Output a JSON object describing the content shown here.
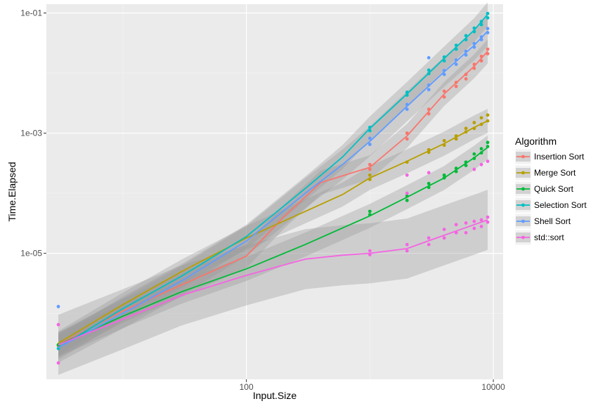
{
  "chart_data": {
    "type": "scatter",
    "title": "",
    "xlabel": "Input.Size",
    "ylabel": "Time.Elapsed",
    "x_scale": "log10",
    "y_scale": "log10",
    "xlim": [
      2.4,
      12000
    ],
    "ylim": [
      8e-08,
      0.14
    ],
    "x_ticks": [
      {
        "value": 100,
        "label": "100"
      },
      {
        "value": 10000,
        "label": "10000"
      }
    ],
    "x_minor_ticks": [
      10,
      1000
    ],
    "y_ticks": [
      {
        "value": 1e-05,
        "label": "1e-05"
      },
      {
        "value": 0.001,
        "label": "1e-03"
      },
      {
        "value": 0.1,
        "label": "1e-01"
      }
    ],
    "y_minor_ticks": [
      1e-06,
      0.0001,
      0.01
    ],
    "grid": true,
    "legend": {
      "title": "Algorithm",
      "position": "right"
    },
    "series": [
      {
        "name": "Insertion Sort",
        "color": "#F8766D",
        "points": [
          [
            3,
            2.9e-07
          ],
          [
            1000,
            0.00025
          ],
          [
            1000,
            0.0003
          ],
          [
            2000,
            0.0008
          ],
          [
            2000,
            0.001
          ],
          [
            3000,
            0.0021
          ],
          [
            3000,
            0.0025
          ],
          [
            4000,
            0.004
          ],
          [
            4000,
            0.005
          ],
          [
            5000,
            0.006
          ],
          [
            5000,
            0.007
          ],
          [
            6000,
            0.008
          ],
          [
            6000,
            0.0095
          ],
          [
            7000,
            0.012
          ],
          [
            7000,
            0.014
          ],
          [
            8000,
            0.016
          ],
          [
            8000,
            0.019
          ],
          [
            9000,
            0.021
          ],
          [
            9000,
            0.025
          ]
        ],
        "fit": [
          [
            3,
            3e-07
          ],
          [
            10,
            1.1e-06
          ],
          [
            30,
            3e-06
          ],
          [
            100,
            9e-06
          ],
          [
            200,
            4e-05
          ],
          [
            400,
            0.00015
          ],
          [
            1000,
            0.00027
          ],
          [
            2000,
            0.0009
          ],
          [
            4000,
            0.0045
          ],
          [
            7000,
            0.013
          ],
          [
            9000,
            0.023
          ]
        ],
        "band": 0.2
      },
      {
        "name": "Merge Sort",
        "color": "#B79F00",
        "points": [
          [
            3,
            3e-07
          ],
          [
            1000,
            0.00017
          ],
          [
            1000,
            0.0002
          ],
          [
            2000,
            0.00033
          ],
          [
            3000,
            0.00048
          ],
          [
            3000,
            0.00053
          ],
          [
            4000,
            0.00063
          ],
          [
            4000,
            0.00075
          ],
          [
            5000,
            0.0008
          ],
          [
            5000,
            0.0009
          ],
          [
            6000,
            0.00105
          ],
          [
            6000,
            0.0012
          ],
          [
            7000,
            0.0012
          ],
          [
            7000,
            0.0015
          ],
          [
            8000,
            0.0014
          ],
          [
            8000,
            0.0018
          ],
          [
            9000,
            0.0016
          ],
          [
            9000,
            0.002
          ]
        ],
        "fit": [
          [
            3,
            3.2e-07
          ],
          [
            10,
            1.4e-06
          ],
          [
            30,
            5e-06
          ],
          [
            100,
            1.8e-05
          ],
          [
            300,
            5e-05
          ],
          [
            600,
            9.5e-05
          ],
          [
            1000,
            0.00018
          ],
          [
            2000,
            0.00034
          ],
          [
            4000,
            0.00067
          ],
          [
            7000,
            0.00125
          ],
          [
            9000,
            0.0016
          ]
        ],
        "band": 0.2
      },
      {
        "name": "Quick Sort",
        "color": "#00BA38",
        "points": [
          [
            3,
            3e-07
          ],
          [
            1000,
            4.4e-05
          ],
          [
            1000,
            5e-05
          ],
          [
            2000,
            7.6e-05
          ],
          [
            2000,
            9e-05
          ],
          [
            3000,
            0.000125
          ],
          [
            3000,
            0.000145
          ],
          [
            4000,
            0.00018
          ],
          [
            4000,
            0.0002
          ],
          [
            5000,
            0.00023
          ],
          [
            5000,
            0.00026
          ],
          [
            6000,
            0.00029
          ],
          [
            6000,
            0.00033
          ],
          [
            7000,
            0.00038
          ],
          [
            7000,
            0.00045
          ],
          [
            8000,
            0.00047
          ],
          [
            8000,
            0.00055
          ],
          [
            9000,
            0.0006
          ],
          [
            9000,
            0.0007
          ]
        ],
        "fit": [
          [
            3,
            3e-07
          ],
          [
            10,
            9e-07
          ],
          [
            30,
            2.3e-06
          ],
          [
            100,
            5.5e-06
          ],
          [
            300,
            1.4e-05
          ],
          [
            1000,
            4.2e-05
          ],
          [
            2000,
            8.6e-05
          ],
          [
            4000,
            0.00018
          ],
          [
            7000,
            0.00039
          ],
          [
            9000,
            0.00058
          ]
        ],
        "band": 0.2
      },
      {
        "name": "Selection Sort",
        "color": "#00BFC4",
        "points": [
          [
            3,
            2.6e-07
          ],
          [
            1000,
            0.0011
          ],
          [
            1000,
            0.00125
          ],
          [
            2000,
            0.0043
          ],
          [
            2000,
            0.0048
          ],
          [
            3000,
            0.0098
          ],
          [
            3000,
            0.0112
          ],
          [
            4000,
            0.016
          ],
          [
            4000,
            0.0185
          ],
          [
            5000,
            0.025
          ],
          [
            5000,
            0.029
          ],
          [
            6000,
            0.036
          ],
          [
            6000,
            0.042
          ],
          [
            7000,
            0.049
          ],
          [
            7000,
            0.056
          ],
          [
            8000,
            0.064
          ],
          [
            8000,
            0.072
          ],
          [
            9000,
            0.083
          ],
          [
            9000,
            0.098
          ]
        ],
        "fit": [
          [
            3,
            2.7e-07
          ],
          [
            10,
            1.2e-06
          ],
          [
            30,
            4.2e-06
          ],
          [
            100,
            1.9e-05
          ],
          [
            300,
            0.00012
          ],
          [
            600,
            0.0004
          ],
          [
            1000,
            0.0012
          ],
          [
            2000,
            0.0045
          ],
          [
            4000,
            0.0175
          ],
          [
            7000,
            0.052
          ],
          [
            9000,
            0.095
          ]
        ],
        "band": 0.2
      },
      {
        "name": "Shell Sort",
        "color": "#619CFF",
        "points": [
          [
            3,
            1.3e-06
          ],
          [
            1000,
            0.00065
          ],
          [
            1000,
            0.00082
          ],
          [
            2000,
            0.0025
          ],
          [
            2000,
            0.003
          ],
          [
            3000,
            0.0053
          ],
          [
            3000,
            0.0063
          ],
          [
            3000,
            0.018
          ],
          [
            4000,
            0.0095
          ],
          [
            4000,
            0.011
          ],
          [
            5000,
            0.014
          ],
          [
            5000,
            0.0165
          ],
          [
            6000,
            0.02
          ],
          [
            6000,
            0.023
          ],
          [
            7000,
            0.027
          ],
          [
            7000,
            0.031
          ],
          [
            8000,
            0.036
          ],
          [
            8000,
            0.04
          ],
          [
            9000,
            0.047
          ],
          [
            9000,
            0.055
          ]
        ],
        "fit": [
          [
            3,
            2.7e-07
          ],
          [
            10,
            1e-06
          ],
          [
            30,
            3.5e-06
          ],
          [
            100,
            1.6e-05
          ],
          [
            300,
            0.0001
          ],
          [
            600,
            0.0003
          ],
          [
            1000,
            0.00073
          ],
          [
            2000,
            0.0028
          ],
          [
            4000,
            0.0105
          ],
          [
            7000,
            0.029
          ],
          [
            9000,
            0.05
          ]
        ],
        "band": 0.25
      },
      {
        "name": "std::sort",
        "color": "#F564E3",
        "points": [
          [
            3,
            6.5e-07
          ],
          [
            3,
            1.5e-07
          ],
          [
            1000,
            9.5e-06
          ],
          [
            1000,
            1.1e-05
          ],
          [
            2000,
            1.1e-05
          ],
          [
            2000,
            1.4e-05
          ],
          [
            2000,
            0.0002
          ],
          [
            2000,
            0.0001
          ],
          [
            3000,
            1.4e-05
          ],
          [
            3000,
            1.8e-05
          ],
          [
            3000,
            0.00022
          ],
          [
            4000,
            1.8e-05
          ],
          [
            4000,
            2.5e-05
          ],
          [
            5000,
            2.2e-05
          ],
          [
            5000,
            3e-05
          ],
          [
            6000,
            2.2e-05
          ],
          [
            6000,
            3.2e-05
          ],
          [
            7000,
            2.6e-05
          ],
          [
            7000,
            3.4e-05
          ],
          [
            7000,
            0.00025
          ],
          [
            8000,
            2.8e-05
          ],
          [
            8000,
            3.6e-05
          ],
          [
            8000,
            0.0003
          ],
          [
            9000,
            3.3e-05
          ],
          [
            9000,
            4e-05
          ],
          [
            9000,
            0.00034
          ]
        ],
        "fit": [
          [
            3,
            3e-07
          ],
          [
            10,
            8e-07
          ],
          [
            30,
            2e-06
          ],
          [
            100,
            4.3e-06
          ],
          [
            300,
            8e-06
          ],
          [
            600,
            9.3e-06
          ],
          [
            1000,
            1e-05
          ],
          [
            2000,
            1.2e-05
          ],
          [
            4000,
            2e-05
          ],
          [
            7000,
            3e-05
          ],
          [
            9000,
            3.6e-05
          ]
        ],
        "band": 0.5
      }
    ]
  }
}
